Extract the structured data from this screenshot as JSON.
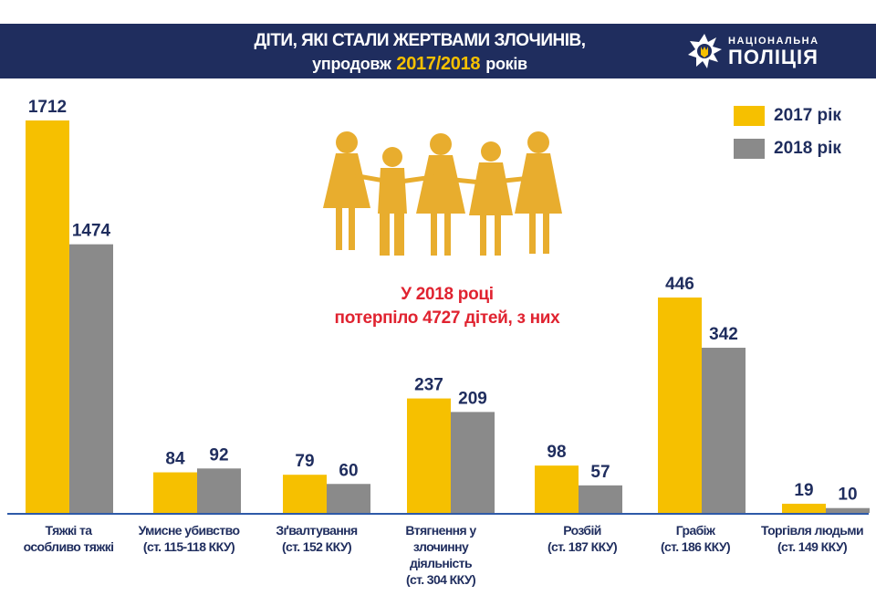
{
  "header": {
    "title_line1": "ДІТИ, ЯКІ СТАЛИ ЖЕРТВАМИ ЗЛОЧИНІВ,",
    "title_prefix": "упродовж",
    "title_years": "2017/2018",
    "title_suffix": "років"
  },
  "logo": {
    "top": "НАЦІОНАЛЬНА",
    "bottom": "ПОЛІЦІЯ"
  },
  "callout": {
    "line1": "У 2018 році",
    "line2": "потерпіло 4727 дітей, з них"
  },
  "colors": {
    "header_bg": "#1f2d5e",
    "series_2017": "#f6c000",
    "series_2018": "#8a8a8a",
    "text": "#1f2d5e",
    "callout": "#e02330",
    "silhouette": "#e8ad2e"
  },
  "chart_data": {
    "type": "bar",
    "categories": [
      [
        "Тяжкі та",
        "особливо тяжкі"
      ],
      [
        "Умисне убивство",
        "(ст. 115-118 ККУ)"
      ],
      [
        "Зґвалтування",
        "(ст. 152 ККУ)"
      ],
      [
        "Втягнення у",
        "злочинну",
        "діяльність",
        "(ст. 304 ККУ)"
      ],
      [
        "Розбій",
        "(ст. 187 ККУ)"
      ],
      [
        "Грабіж",
        "(ст. 186 ККУ)"
      ],
      [
        "Торгівля людьми",
        "(ст. 149 ККУ)"
      ]
    ],
    "series": [
      {
        "name": "2017 рік",
        "values": [
          1712,
          84,
          79,
          237,
          98,
          446,
          19
        ]
      },
      {
        "name": "2018 рік",
        "values": [
          1474,
          92,
          60,
          209,
          57,
          342,
          10
        ]
      }
    ],
    "legend_position": "top-right",
    "grid": false,
    "icon": "children-silhouettes"
  }
}
